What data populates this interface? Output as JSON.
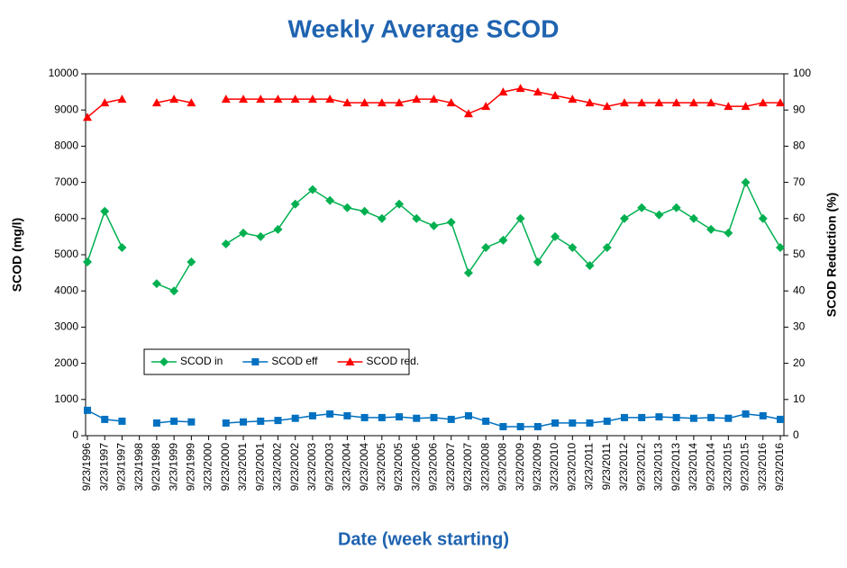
{
  "chart_data": {
    "type": "line",
    "title": "Weekly Average SCOD",
    "x_label": "Date (week starting)",
    "y_label": "SCOD (mg/l)",
    "y2_label": "SCOD Reduction (%)",
    "categories": [
      "9/23/1996",
      "3/23/1997",
      "9/23/1997",
      "3/23/1998",
      "9/23/1998",
      "3/23/1999",
      "9/23/1999",
      "3/23/2000",
      "9/23/2000",
      "3/23/2001",
      "9/23/2001",
      "3/23/2002",
      "9/23/2002",
      "3/23/2003",
      "9/23/2003",
      "3/23/2004",
      "9/23/2004",
      "3/23/2005",
      "9/23/2005",
      "3/23/2006",
      "9/23/2006",
      "3/23/2007",
      "9/23/2007",
      "3/23/2008",
      "9/23/2008",
      "3/23/2009",
      "9/23/2009",
      "3/23/2010",
      "9/23/2010",
      "3/23/2011",
      "9/23/2011",
      "3/23/2012",
      "9/23/2012",
      "3/23/2013",
      "9/23/2013",
      "3/23/2014",
      "9/23/2014",
      "3/23/2015",
      "9/23/2015",
      "3/23/2016",
      "9/23/2016"
    ],
    "series": [
      {
        "name": "SCOD in",
        "color": "#00b050",
        "marker": "diamond",
        "values": [
          4800,
          6200,
          5200,
          null,
          4200,
          4000,
          4800,
          null,
          5300,
          5600,
          5500,
          5700,
          6400,
          6800,
          6500,
          6300,
          6200,
          6000,
          6400,
          6000,
          5800,
          5900,
          4500,
          5200,
          5400,
          6000,
          4800,
          5500,
          5200,
          4700,
          5200,
          6000,
          6300,
          6100,
          6300,
          6000,
          5700,
          5600,
          7000,
          6000,
          5200
        ]
      },
      {
        "name": "SCOD eff",
        "color": "#0070c0",
        "marker": "square",
        "values": [
          700,
          450,
          400,
          null,
          350,
          400,
          380,
          null,
          350,
          380,
          400,
          420,
          480,
          550,
          600,
          550,
          500,
          500,
          520,
          480,
          500,
          450,
          550,
          400,
          250,
          250,
          250,
          350,
          350,
          350,
          400,
          500,
          500,
          520,
          500,
          480,
          500,
          480,
          600,
          550,
          450
        ]
      },
      {
        "name": "SCOD red.",
        "color": "#ff0000",
        "marker": "triangle",
        "axis": "y2",
        "values": [
          88,
          92,
          93,
          null,
          92,
          93,
          92,
          null,
          93,
          93,
          93,
          93,
          93,
          93,
          93,
          92,
          92,
          92,
          92,
          93,
          93,
          92,
          89,
          91,
          95,
          96,
          95,
          94,
          93,
          92,
          91,
          92,
          92,
          92,
          92,
          92,
          92,
          91,
          91,
          92,
          92
        ]
      }
    ],
    "ylim": [
      0,
      10000
    ],
    "yticks": [
      0,
      1000,
      2000,
      3000,
      4000,
      5000,
      6000,
      7000,
      8000,
      9000,
      10000
    ],
    "y2lim": [
      0,
      100
    ],
    "y2ticks": [
      0,
      10,
      20,
      30,
      40,
      50,
      60,
      70,
      80,
      90,
      100
    ],
    "legend": "lower left"
  }
}
